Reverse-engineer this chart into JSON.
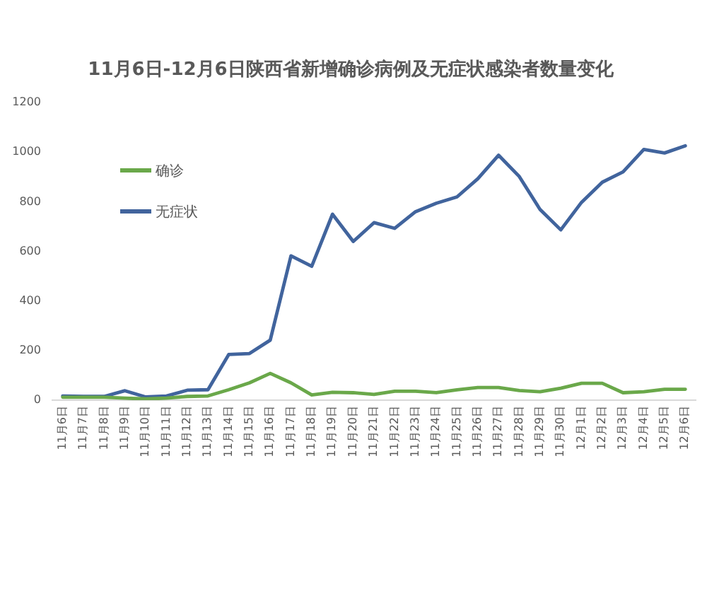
{
  "chart_data": {
    "type": "line",
    "title": "11月6日-12月6日陕西省新增确诊病例及无症状感染者数量变化",
    "categories": [
      "11月6日",
      "11月7日",
      "11月8日",
      "11月9日",
      "11月10日",
      "11月11日",
      "11月12日",
      "11月13日",
      "11月14日",
      "11月15日",
      "11月16日",
      "11月17日",
      "11月18日",
      "11月19日",
      "11月20日",
      "11月21日",
      "11月22日",
      "11月23日",
      "11月24日",
      "11月25日",
      "11月26日",
      "11月27日",
      "11月28日",
      "11月29日",
      "11月30日",
      "12月1日",
      "12月2日",
      "12月3日",
      "12月4日",
      "12月5日",
      "12月6日"
    ],
    "series": [
      {
        "name": "确诊",
        "color": "#6aa84a",
        "values": [
          12,
          12,
          12,
          8,
          5,
          8,
          15,
          17,
          42,
          70,
          108,
          70,
          21,
          32,
          30,
          23,
          36,
          36,
          30,
          42,
          51,
          51,
          39,
          34,
          48,
          68,
          68,
          30,
          34,
          44,
          44
        ]
      },
      {
        "name": "无症状",
        "color": "#41649d",
        "values": [
          17,
          15,
          15,
          38,
          13,
          17,
          40,
          42,
          184,
          188,
          242,
          582,
          540,
          750,
          640,
          716,
          693,
          760,
          794,
          820,
          893,
          988,
          902,
          769,
          687,
          798,
          879,
          921,
          1011,
          997,
          1026
        ]
      }
    ],
    "ylim": [
      0,
      1200
    ],
    "yticks": [
      0,
      200,
      400,
      600,
      800,
      1000,
      1200
    ],
    "grid": false,
    "legend": "top left"
  }
}
